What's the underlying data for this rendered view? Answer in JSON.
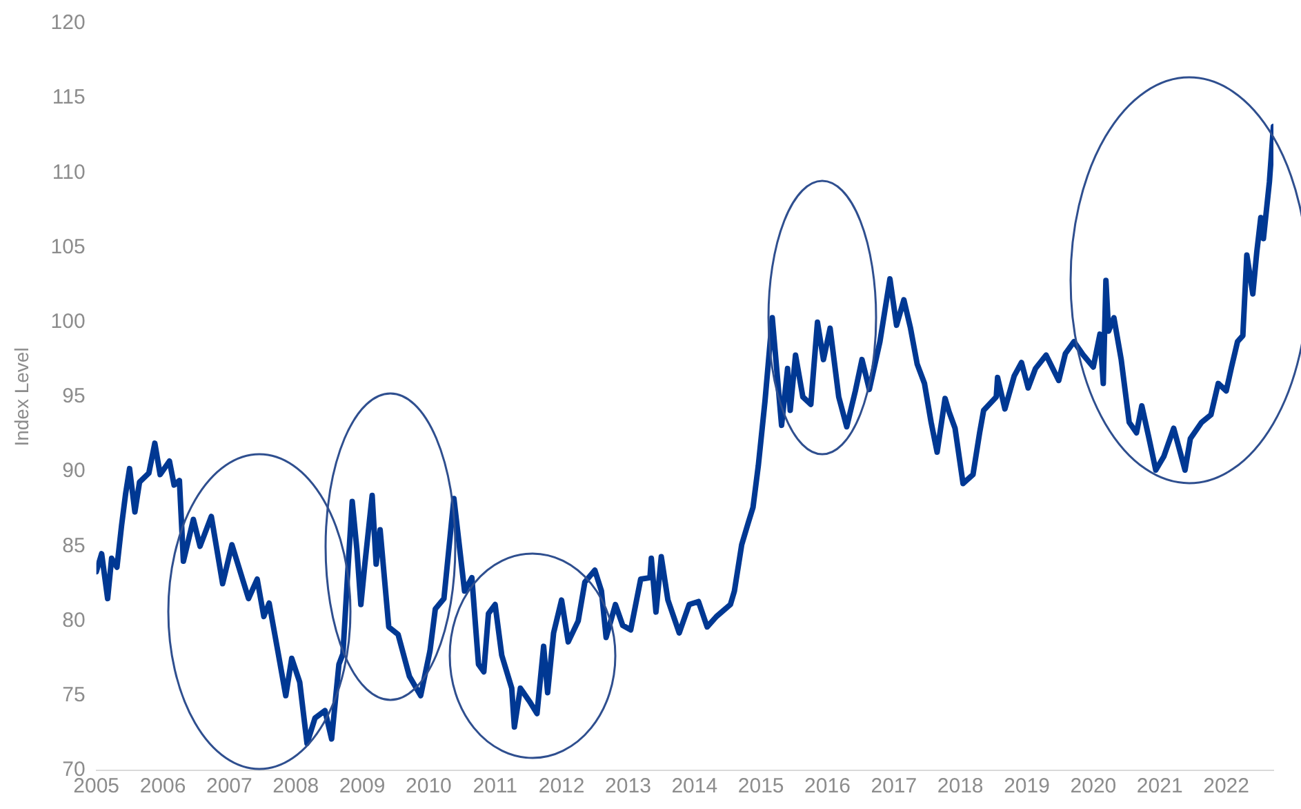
{
  "chart_data": {
    "type": "line",
    "ylabel": "Index Level",
    "x": [
      2005.0,
      2005.08,
      2005.17,
      2005.23,
      2005.31,
      2005.38,
      2005.44,
      2005.5,
      2005.58,
      2005.65,
      2005.79,
      2005.88,
      2005.96,
      2006.1,
      2006.17,
      2006.25,
      2006.31,
      2006.46,
      2006.56,
      2006.73,
      2006.9,
      2007.04,
      2007.29,
      2007.42,
      2007.52,
      2007.6,
      2007.73,
      2007.85,
      2007.94,
      2008.06,
      2008.17,
      2008.29,
      2008.44,
      2008.54,
      2008.65,
      2008.71,
      2008.79,
      2008.85,
      2008.92,
      2008.98,
      2009.04,
      2009.15,
      2009.21,
      2009.27,
      2009.4,
      2009.54,
      2009.71,
      2009.88,
      2010.02,
      2010.1,
      2010.23,
      2010.38,
      2010.54,
      2010.65,
      2010.75,
      2010.83,
      2010.9,
      2011.0,
      2011.1,
      2011.25,
      2011.29,
      2011.38,
      2011.52,
      2011.63,
      2011.73,
      2011.79,
      2011.88,
      2012.0,
      2012.1,
      2012.25,
      2012.35,
      2012.5,
      2012.6,
      2012.67,
      2012.81,
      2012.92,
      2013.04,
      2013.19,
      2013.33,
      2013.35,
      2013.42,
      2013.5,
      2013.6,
      2013.77,
      2013.92,
      2014.06,
      2014.19,
      2014.33,
      2014.54,
      2014.6,
      2014.71,
      2014.81,
      2014.88,
      2014.96,
      2015.06,
      2015.17,
      2015.31,
      2015.4,
      2015.44,
      2015.52,
      2015.63,
      2015.75,
      2015.85,
      2015.94,
      2016.04,
      2016.17,
      2016.29,
      2016.42,
      2016.52,
      2016.63,
      2016.79,
      2016.94,
      2017.04,
      2017.15,
      2017.25,
      2017.35,
      2017.46,
      2017.56,
      2017.65,
      2017.77,
      2017.83,
      2017.92,
      2018.04,
      2018.19,
      2018.29,
      2018.35,
      2018.54,
      2018.56,
      2018.67,
      2018.81,
      2018.92,
      2019.02,
      2019.13,
      2019.29,
      2019.48,
      2019.58,
      2019.71,
      2019.85,
      2020.0,
      2020.1,
      2020.15,
      2020.19,
      2020.23,
      2020.31,
      2020.42,
      2020.54,
      2020.65,
      2020.73,
      2020.83,
      2020.94,
      2021.06,
      2021.21,
      2021.38,
      2021.46,
      2021.63,
      2021.77,
      2021.88,
      2022.0,
      2022.08,
      2022.17,
      2022.25,
      2022.31,
      2022.4,
      2022.46,
      2022.52,
      2022.56,
      2022.65,
      2022.71
    ],
    "series": [
      {
        "color": "#003893",
        "values": [
          83.3,
          84.5,
          81.5,
          84.2,
          83.6,
          86.4,
          88.5,
          90.2,
          87.3,
          89.3,
          89.9,
          91.9,
          89.8,
          90.7,
          89.1,
          89.4,
          84.0,
          86.8,
          85.0,
          87.0,
          82.5,
          85.1,
          81.5,
          82.8,
          80.3,
          81.2,
          78.0,
          75.0,
          77.5,
          75.9,
          71.8,
          73.5,
          74.0,
          72.1,
          77.1,
          77.8,
          83.8,
          88.0,
          84.8,
          81.1,
          83.8,
          88.4,
          83.8,
          86.1,
          79.6,
          79.1,
          76.3,
          75.0,
          78.0,
          80.8,
          81.5,
          88.2,
          82.0,
          82.9,
          77.1,
          76.6,
          80.5,
          81.1,
          77.7,
          75.5,
          72.9,
          75.5,
          74.6,
          73.8,
          78.3,
          75.2,
          79.2,
          81.4,
          78.6,
          80.0,
          82.6,
          83.4,
          82.0,
          78.9,
          81.1,
          79.7,
          79.4,
          82.8,
          82.9,
          84.2,
          80.6,
          84.3,
          81.4,
          79.2,
          81.1,
          81.3,
          79.6,
          80.3,
          81.1,
          82.0,
          85.1,
          86.6,
          87.6,
          90.4,
          94.7,
          100.3,
          93.1,
          96.9,
          94.1,
          97.8,
          95.0,
          94.5,
          100.0,
          97.5,
          99.6,
          95.0,
          93.0,
          95.4,
          97.5,
          95.5,
          98.7,
          102.9,
          99.8,
          101.5,
          99.6,
          97.2,
          95.9,
          93.3,
          91.3,
          94.9,
          94.0,
          92.9,
          89.2,
          89.8,
          92.6,
          94.1,
          95.0,
          96.3,
          94.2,
          96.4,
          97.3,
          95.6,
          96.9,
          97.8,
          96.1,
          97.9,
          98.7,
          97.8,
          97.0,
          99.2,
          95.9,
          102.8,
          99.4,
          100.3,
          97.5,
          93.3,
          92.6,
          94.4,
          92.4,
          90.1,
          91.0,
          92.9,
          90.1,
          92.2,
          93.3,
          93.8,
          95.9,
          95.4,
          97.0,
          98.7,
          99.1,
          104.5,
          101.9,
          104.7,
          107.0,
          105.6,
          109.4,
          113.1
        ]
      }
    ],
    "xlim": [
      2005,
      2022.71
    ],
    "xticks": [
      2005,
      2006,
      2007,
      2008,
      2009,
      2010,
      2011,
      2012,
      2013,
      2014,
      2015,
      2016,
      2017,
      2018,
      2019,
      2020,
      2021,
      2022
    ],
    "ylim": [
      70,
      120
    ],
    "yticks": [
      70,
      75,
      80,
      85,
      90,
      95,
      100,
      105,
      110,
      115,
      120
    ],
    "grid": false,
    "marker": "none",
    "line_style": "solid"
  }
}
